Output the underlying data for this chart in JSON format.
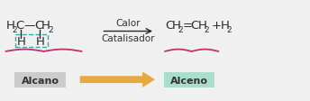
{
  "bg_color": "#f0f0f0",
  "alcano_label": "Alcano",
  "alceno_label": "Alceno",
  "calor_label": "Calor",
  "catalisador_label": "Catalisador",
  "alcano_box_color": "#cccccc",
  "alceno_box_color": "#aaddcc",
  "brace_color": "#c0306a",
  "dashed_box_color": "#33aaaa",
  "arrow_color": "#e8a840",
  "text_color": "#333333",
  "chem_color": "#2a2a2a"
}
